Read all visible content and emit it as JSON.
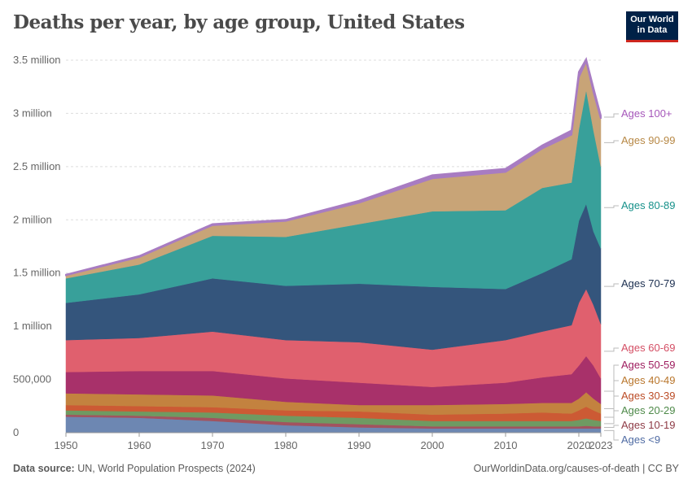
{
  "title": "Deaths per year, by age group, United States",
  "logo": {
    "line1": "Our World",
    "line2": "in Data"
  },
  "footer": {
    "source_label": "Data source:",
    "source": "UN, World Population Prospects (2024)",
    "right": "OurWorldinData.org/causes-of-death | CC BY"
  },
  "chart_data": {
    "type": "area",
    "stacked": true,
    "title": "Deaths per year, by age group, United States",
    "xlim": [
      1950,
      2023
    ],
    "ylim": [
      0,
      3500000
    ],
    "grid": true,
    "legend": "right",
    "x_ticks": [
      "1950",
      "1960",
      "1970",
      "1980",
      "1990",
      "2000",
      "2010",
      "2020",
      "2023"
    ],
    "y_ticks": [
      {
        "v": 0,
        "label": "0"
      },
      {
        "v": 500000,
        "label": "500,000"
      },
      {
        "v": 1000000,
        "label": "1 million"
      },
      {
        "v": 1500000,
        "label": "1.5 million"
      },
      {
        "v": 2000000,
        "label": "2 million"
      },
      {
        "v": 2500000,
        "label": "2.5 million"
      },
      {
        "v": 3000000,
        "label": "3 million"
      },
      {
        "v": 3500000,
        "label": "3.5 million"
      }
    ],
    "x": [
      1950,
      1960,
      1970,
      1980,
      1990,
      2000,
      2010,
      2015,
      2019,
      2020,
      2021,
      2022,
      2023
    ],
    "series": [
      {
        "name": "Ages <9",
        "color": "#6d87b2",
        "label_color": "#4f6ba3",
        "values": [
          150000,
          140000,
          110000,
          70000,
          50000,
          40000,
          40000,
          40000,
          40000,
          40000,
          40000,
          40000,
          40000
        ]
      },
      {
        "name": "Ages 10-19",
        "color": "#a2535f",
        "label_color": "#8e3b46",
        "values": [
          20000,
          20000,
          30000,
          30000,
          30000,
          20000,
          20000,
          20000,
          20000,
          20000,
          25000,
          20000,
          20000
        ]
      },
      {
        "name": "Ages 20-29",
        "color": "#6f9a62",
        "label_color": "#4f8a4a",
        "values": [
          40000,
          40000,
          50000,
          60000,
          60000,
          50000,
          50000,
          50000,
          50000,
          60000,
          70000,
          60000,
          50000
        ]
      },
      {
        "name": "Ages 30-39",
        "color": "#cc5a34",
        "label_color": "#bb4b25",
        "values": [
          50000,
          50000,
          50000,
          50000,
          60000,
          60000,
          70000,
          80000,
          70000,
          90000,
          110000,
          90000,
          70000
        ]
      },
      {
        "name": "Ages 40-49",
        "color": "#c3823f",
        "label_color": "#b9762c",
        "values": [
          110000,
          110000,
          110000,
          80000,
          60000,
          90000,
          90000,
          90000,
          100000,
          110000,
          135000,
          110000,
          90000
        ]
      },
      {
        "name": "Ages 50-59",
        "color": "#a8316a",
        "label_color": "#9e1d5f",
        "values": [
          200000,
          220000,
          230000,
          220000,
          210000,
          170000,
          200000,
          240000,
          270000,
          310000,
          340000,
          310000,
          240000
        ]
      },
      {
        "name": "Ages 60-69",
        "color": "#e0606e",
        "label_color": "#d44e64",
        "values": [
          300000,
          310000,
          370000,
          360000,
          380000,
          350000,
          400000,
          430000,
          460000,
          590000,
          630000,
          570000,
          510000
        ]
      },
      {
        "name": "Ages 70-79",
        "color": "#34557c",
        "label_color": "#1c2f50",
        "values": [
          350000,
          410000,
          500000,
          510000,
          550000,
          590000,
          480000,
          550000,
          620000,
          770000,
          800000,
          690000,
          710000
        ]
      },
      {
        "name": "Ages 80-89",
        "color": "#38a09a",
        "label_color": "#16918a",
        "values": [
          230000,
          280000,
          400000,
          460000,
          560000,
          710000,
          740000,
          800000,
          720000,
          860000,
          1070000,
          950000,
          770000
        ]
      },
      {
        "name": "Ages 90-99",
        "color": "#c8a477",
        "label_color": "#b78845",
        "values": [
          30000,
          70000,
          100000,
          150000,
          200000,
          310000,
          360000,
          370000,
          450000,
          490000,
          270000,
          360000,
          450000
        ]
      },
      {
        "name": "Ages 100+",
        "color": "#a87cc2",
        "label_color": "#a657ba",
        "values": [
          5000,
          10000,
          10000,
          10000,
          20000,
          30000,
          30000,
          30000,
          40000,
          50000,
          20000,
          40000,
          30000
        ]
      }
    ]
  }
}
